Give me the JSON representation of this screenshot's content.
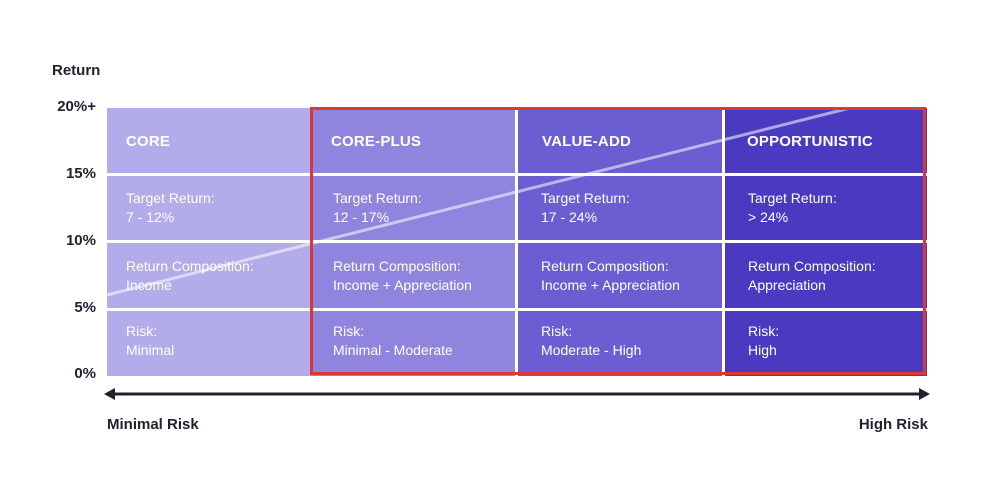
{
  "axis": {
    "y_title": "Return",
    "y_ticks": [
      "20%+",
      "15%",
      "10%",
      "5%",
      "0%"
    ],
    "x_left": "Minimal Risk",
    "x_right": "High Risk"
  },
  "columns": [
    {
      "name": "CORE",
      "color": "#b3acea",
      "target_label": "Target Return:",
      "target_value": "7 - 12%",
      "composition_label": "Return Composition:",
      "composition_value": "Income",
      "risk_label": "Risk:",
      "risk_value": "Minimal"
    },
    {
      "name": "CORE-PLUS",
      "color": "#8f85df",
      "target_label": "Target Return:",
      "target_value": "12 - 17%",
      "composition_label": "Return Composition:",
      "composition_value": "Income + Appreciation",
      "risk_label": "Risk:",
      "risk_value": "Minimal - Moderate"
    },
    {
      "name": "VALUE-ADD",
      "color": "#6b5ed3",
      "target_label": "Target Return:",
      "target_value": "17 - 24%",
      "composition_label": "Return Composition:",
      "composition_value": "Income + Appreciation",
      "risk_label": "Risk:",
      "risk_value": "Moderate - High"
    },
    {
      "name": "OPPORTUNISTIC",
      "color": "#4a3ac2",
      "target_label": "Target Return:",
      "target_value": "> 24%",
      "composition_label": "Return Composition:",
      "composition_value": "Appreciation",
      "risk_label": "Risk:",
      "risk_value": "High"
    }
  ],
  "colors": {
    "highlight_border": "#d9373a",
    "axis": "#1f2130",
    "trend_line": "#ffffff"
  }
}
